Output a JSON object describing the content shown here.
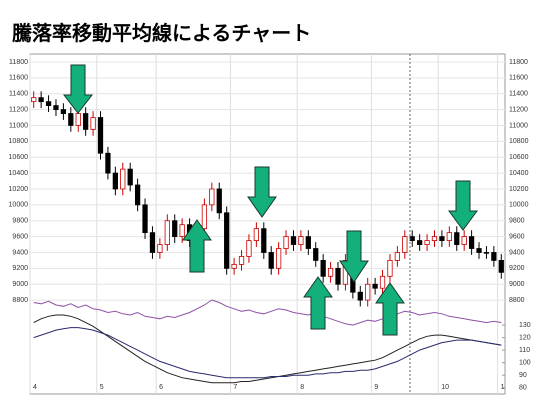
{
  "chart_data": [
    {
      "type": "candlestick",
      "title": "騰落率移動平均線によるチャート",
      "categories": [
        "4",
        null,
        null,
        null,
        null,
        null,
        null,
        null,
        null,
        "5",
        null,
        null,
        null,
        null,
        null,
        null,
        null,
        "6",
        null,
        null,
        null,
        null,
        null,
        null,
        null,
        null,
        null,
        "7",
        null,
        null,
        null,
        null,
        null,
        null,
        null,
        null,
        "8",
        null,
        null,
        null,
        null,
        null,
        null,
        null,
        null,
        null,
        "9",
        null,
        null,
        null,
        null,
        null,
        null,
        null,
        null,
        "10",
        null,
        null,
        null,
        null,
        null,
        null,
        null,
        "1"
      ],
      "open": [
        11300,
        11350,
        11300,
        11250,
        11200,
        11150,
        11000,
        11150,
        10950,
        11100,
        10650,
        10400,
        10200,
        10450,
        10250,
        10000,
        9650,
        9400,
        9500,
        9800,
        9600,
        9750,
        9550,
        9700,
        10000,
        10200,
        9900,
        9200,
        9250,
        9350,
        9550,
        9700,
        9400,
        9200,
        9450,
        9600,
        9500,
        9600,
        9450,
        9300,
        9100,
        9200,
        9000,
        9300,
        8900,
        8800,
        9000,
        8950,
        9100,
        9300,
        9400,
        9600,
        9550,
        9500,
        9550,
        9600,
        9550,
        9650,
        9500,
        9600,
        9450,
        9400,
        9400,
        9300
      ],
      "high": [
        11430,
        11430,
        11380,
        11330,
        11280,
        11230,
        11230,
        11230,
        11180,
        11180,
        10730,
        10480,
        10530,
        10530,
        10330,
        10080,
        9730,
        9580,
        9880,
        9880,
        9830,
        9830,
        9780,
        10080,
        10280,
        10280,
        9980,
        9330,
        9430,
        9630,
        9780,
        9780,
        9480,
        9530,
        9680,
        9680,
        9680,
        9680,
        9530,
        9380,
        9280,
        9280,
        9380,
        9380,
        8980,
        9080,
        9080,
        9180,
        9380,
        9480,
        9680,
        9680,
        9630,
        9630,
        9680,
        9680,
        9730,
        9730,
        9680,
        9680,
        9530,
        9480,
        9480,
        9380
      ],
      "low": [
        11220,
        11220,
        11170,
        11120,
        11070,
        10920,
        10920,
        10870,
        10870,
        10570,
        10320,
        10120,
        10120,
        10170,
        9920,
        9570,
        9320,
        9320,
        9420,
        9520,
        9520,
        9470,
        9470,
        9620,
        9920,
        9820,
        9120,
        9120,
        9170,
        9270,
        9470,
        9320,
        9120,
        9120,
        9370,
        9420,
        9420,
        9370,
        9220,
        9020,
        9020,
        8920,
        8920,
        8820,
        8720,
        8720,
        8870,
        8870,
        9020,
        9220,
        9320,
        9470,
        9420,
        9420,
        9470,
        9470,
        9470,
        9420,
        9420,
        9370,
        9320,
        9320,
        9220,
        9070
      ],
      "close": [
        11350,
        11300,
        11250,
        11200,
        11150,
        11000,
        11150,
        10950,
        11100,
        10650,
        10400,
        10200,
        10450,
        10250,
        10000,
        9650,
        9400,
        9500,
        9800,
        9600,
        9750,
        9550,
        9700,
        10000,
        10200,
        9900,
        9200,
        9250,
        9350,
        9550,
        9700,
        9400,
        9200,
        9450,
        9600,
        9500,
        9600,
        9450,
        9300,
        9100,
        9200,
        9000,
        9300,
        8900,
        8800,
        9000,
        8950,
        9100,
        9300,
        9400,
        9600,
        9550,
        9500,
        9550,
        9600,
        9550,
        9650,
        9500,
        9600,
        9450,
        9400,
        9400,
        9300,
        9150
      ],
      "up_color": "#cc0000",
      "down_color": "#000000",
      "ylim": [
        8600,
        11900
      ],
      "yticks": [
        8800,
        9000,
        9200,
        9400,
        9600,
        9800,
        10000,
        10200,
        10400,
        10600,
        10800,
        11000,
        11200,
        11400,
        11600,
        11800
      ],
      "grid": true
    },
    {
      "type": "line",
      "series": [
        {
          "color": "#9050a8",
          "values": [
            148,
            147,
            149,
            146,
            145,
            147,
            144,
            146,
            143,
            142,
            140,
            141,
            139,
            138,
            140,
            137,
            136,
            135,
            137,
            136,
            138,
            140,
            143,
            146,
            150,
            148,
            145,
            143,
            141,
            142,
            140,
            139,
            141,
            143,
            142,
            140,
            139,
            138,
            140,
            137,
            135,
            133,
            131,
            130,
            132,
            134,
            133,
            135,
            137,
            139,
            141,
            140,
            138,
            139,
            140,
            139,
            137,
            136,
            135,
            134,
            133,
            132,
            133,
            132
          ]
        },
        {
          "color": "#222222",
          "values": [
            132,
            135,
            137,
            138,
            138,
            137,
            135,
            132,
            129,
            125,
            121,
            117,
            113,
            109,
            105,
            101,
            98,
            95,
            92,
            90,
            88,
            87,
            86,
            85,
            84,
            84,
            84,
            84,
            85,
            85,
            86,
            87,
            88,
            89,
            90,
            91,
            92,
            93,
            94,
            95,
            96,
            97,
            98,
            99,
            100,
            101,
            102,
            104,
            107,
            110,
            113,
            116,
            119,
            121,
            122,
            122,
            121,
            120,
            119,
            118,
            117,
            116,
            115,
            114
          ]
        },
        {
          "color": "#2a2a70",
          "values": [
            120,
            122,
            124,
            126,
            127,
            128,
            128,
            127,
            126,
            124,
            122,
            119,
            116,
            113,
            110,
            107,
            104,
            101,
            99,
            97,
            95,
            93,
            92,
            91,
            90,
            89,
            88,
            88,
            88,
            88,
            88,
            88,
            89,
            89,
            89,
            90,
            90,
            90,
            91,
            91,
            92,
            92,
            93,
            93,
            94,
            94,
            95,
            97,
            99,
            101,
            104,
            107,
            110,
            112,
            114,
            116,
            117,
            118,
            118,
            118,
            117,
            116,
            115,
            114
          ]
        }
      ],
      "ylim": [
        75,
        150
      ],
      "yticks": [
        80,
        90,
        100,
        110,
        120,
        130
      ]
    }
  ]
}
